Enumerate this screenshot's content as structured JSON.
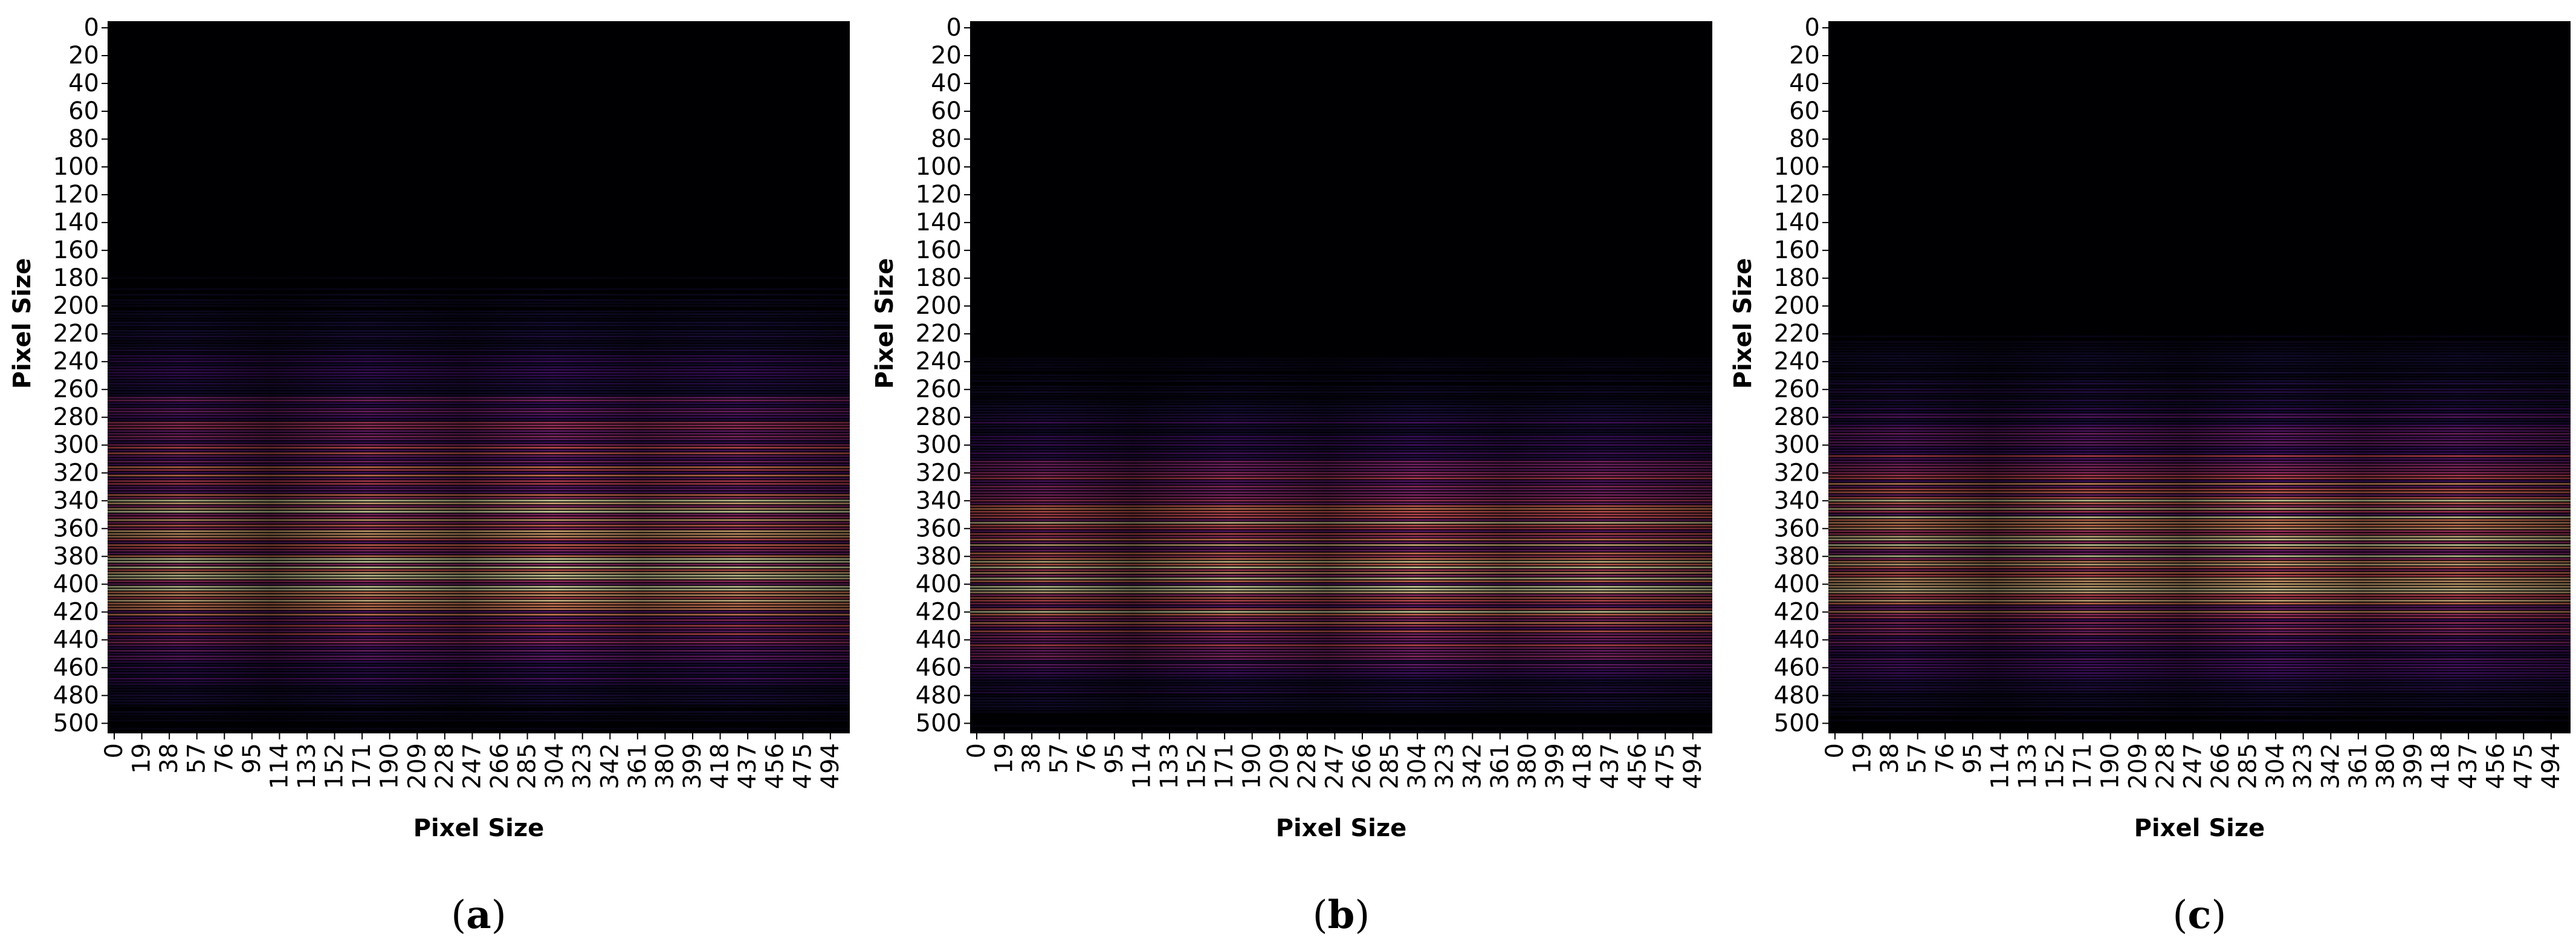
{
  "chart_data": [
    {
      "type": "heatmap",
      "caption": "a",
      "xlabel": "Pixel Size",
      "ylabel": "Pixel Size",
      "x_range": [
        0,
        512
      ],
      "y_range": [
        0,
        512
      ],
      "x_ticks": [
        "0",
        "19",
        "38",
        "57",
        "76",
        "95",
        "114",
        "133",
        "152",
        "171",
        "190",
        "209",
        "228",
        "247",
        "266",
        "285",
        "304",
        "323",
        "342",
        "361",
        "380",
        "399",
        "418",
        "437",
        "456",
        "475",
        "494"
      ],
      "y_ticks": [
        "0",
        "20",
        "40",
        "60",
        "80",
        "100",
        "120",
        "140",
        "160",
        "180",
        "200",
        "220",
        "240",
        "260",
        "280",
        "300",
        "320",
        "340",
        "360",
        "380",
        "400",
        "420",
        "440",
        "460",
        "480",
        "500"
      ],
      "colormap": "magma",
      "signal_band": {
        "y_start": 180,
        "y_peak": 385,
        "y_end": 512,
        "peak_intensity": 1.0
      }
    },
    {
      "type": "heatmap",
      "caption": "b",
      "xlabel": "Pixel Size",
      "ylabel": "Pixel Size",
      "x_range": [
        0,
        512
      ],
      "y_range": [
        0,
        512
      ],
      "x_ticks": [
        "0",
        "19",
        "38",
        "57",
        "76",
        "95",
        "114",
        "133",
        "152",
        "171",
        "190",
        "209",
        "228",
        "247",
        "266",
        "285",
        "304",
        "323",
        "342",
        "361",
        "380",
        "399",
        "418",
        "437",
        "456",
        "475",
        "494"
      ],
      "y_ticks": [
        "0",
        "20",
        "40",
        "60",
        "80",
        "100",
        "120",
        "140",
        "160",
        "180",
        "200",
        "220",
        "240",
        "260",
        "280",
        "300",
        "320",
        "340",
        "360",
        "380",
        "400",
        "420",
        "440",
        "460",
        "480",
        "500"
      ],
      "colormap": "magma",
      "signal_band": {
        "y_start": 240,
        "y_peak": 395,
        "y_end": 512,
        "peak_intensity": 1.0
      }
    },
    {
      "type": "heatmap",
      "caption": "c",
      "xlabel": "Pixel Size",
      "ylabel": "Pixel Size",
      "x_range": [
        0,
        512
      ],
      "y_range": [
        0,
        512
      ],
      "x_ticks": [
        "0",
        "19",
        "38",
        "57",
        "76",
        "95",
        "114",
        "133",
        "152",
        "171",
        "190",
        "209",
        "228",
        "247",
        "266",
        "285",
        "304",
        "323",
        "342",
        "361",
        "380",
        "399",
        "418",
        "437",
        "456",
        "475",
        "494"
      ],
      "y_ticks": [
        "0",
        "20",
        "40",
        "60",
        "80",
        "100",
        "120",
        "140",
        "160",
        "180",
        "200",
        "220",
        "240",
        "260",
        "280",
        "300",
        "320",
        "340",
        "360",
        "380",
        "400",
        "420",
        "440",
        "460",
        "480",
        "500"
      ],
      "colormap": "magma",
      "signal_band": {
        "y_start": 220,
        "y_peak": 380,
        "y_end": 512,
        "peak_intensity": 1.0
      }
    }
  ]
}
